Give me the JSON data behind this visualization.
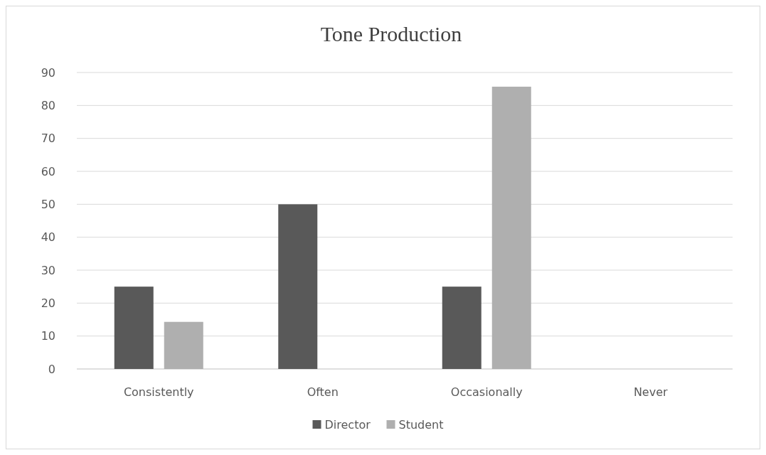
{
  "chart_data": {
    "type": "bar",
    "title": "Tone Production",
    "categories": [
      "Consistently",
      "Often",
      "Occasionally",
      "Never"
    ],
    "series": [
      {
        "name": "Director",
        "color": "#595959",
        "values": [
          25,
          50,
          25,
          0
        ]
      },
      {
        "name": "Student",
        "color": "#afafaf",
        "values": [
          14.3,
          0,
          85.7,
          0
        ]
      }
    ],
    "ylim": [
      0,
      90
    ],
    "yticks": [
      0,
      10,
      20,
      30,
      40,
      50,
      60,
      70,
      80,
      90
    ],
    "grid": "y",
    "legend": "bottom"
  }
}
